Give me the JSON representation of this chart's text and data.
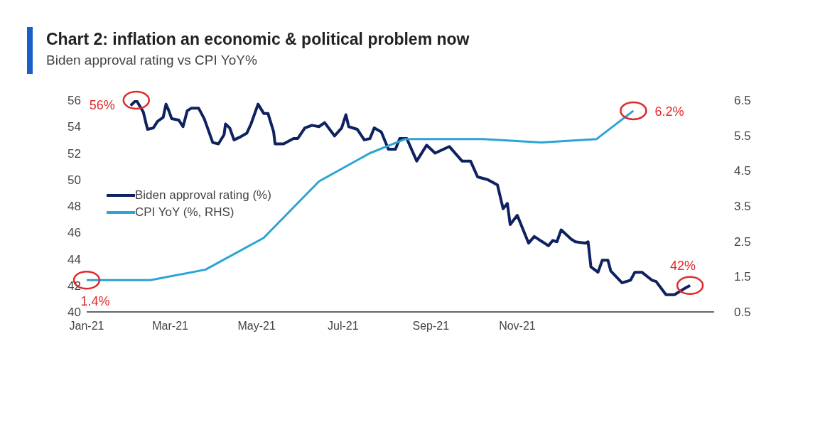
{
  "chart_data": {
    "type": "line",
    "title": "Chart 2: inflation an economic & political problem now",
    "subtitle": "Biden approval rating vs CPI YoY%",
    "xlim": [
      "2021-01-01",
      "2022-03-20"
    ],
    "xticks": [
      {
        "value": "2021-01-01",
        "label": "Jan-21"
      },
      {
        "value": "2021-03-01",
        "label": "Mar-21"
      },
      {
        "value": "2021-05-01",
        "label": "May-21"
      },
      {
        "value": "2021-07-01",
        "label": "Jul-21"
      },
      {
        "value": "2021-09-01",
        "label": "Sep-21"
      },
      {
        "value": "2021-11-01",
        "label": "Nov-21"
      }
    ],
    "ylim": [
      40,
      56
    ],
    "yticks": [
      40,
      42,
      44,
      46,
      48,
      50,
      52,
      54,
      56
    ],
    "y2lim": [
      0.5,
      6.5
    ],
    "y2ticks": [
      0.5,
      1.5,
      2.5,
      3.5,
      4.5,
      5.5,
      6.5
    ],
    "grid": false,
    "legend": "left",
    "marker": "none",
    "line_style": "solid",
    "series": [
      {
        "name": "Biden approval rating (%)",
        "color": "#0f2260",
        "x": [
          "2021-02-01",
          "2021-02-05",
          "2021-02-10",
          "2021-02-12",
          "2021-02-13",
          "2021-02-17",
          "2021-02-20",
          "2021-02-24",
          "2021-02-26",
          "2021-02-28",
          "2021-03-02",
          "2021-03-07",
          "2021-03-10",
          "2021-03-13",
          "2021-03-16",
          "2021-03-21",
          "2021-03-25",
          "2021-03-29",
          "2021-03-31",
          "2021-04-04",
          "2021-04-08",
          "2021-04-09",
          "2021-04-12",
          "2021-04-15",
          "2021-04-19",
          "2021-04-24",
          "2021-04-27",
          "2021-05-02",
          "2021-05-06",
          "2021-05-09",
          "2021-05-13",
          "2021-05-14",
          "2021-05-20",
          "2021-05-27",
          "2021-05-30",
          "2021-06-04",
          "2021-06-09",
          "2021-06-14",
          "2021-06-18",
          "2021-06-25",
          "2021-06-30",
          "2021-07-03",
          "2021-07-05",
          "2021-07-11",
          "2021-07-16",
          "2021-07-20",
          "2021-07-23",
          "2021-07-28",
          "2021-08-02",
          "2021-08-07",
          "2021-08-10",
          "2021-08-15",
          "2021-08-22",
          "2021-08-29",
          "2021-09-04",
          "2021-09-14",
          "2021-09-23",
          "2021-09-29",
          "2021-10-04",
          "2021-10-11",
          "2021-10-18",
          "2021-10-22",
          "2021-10-25",
          "2021-10-27",
          "2021-11-01",
          "2021-11-09",
          "2021-11-13",
          "2021-11-23",
          "2021-11-26",
          "2021-11-29",
          "2021-12-02",
          "2021-12-09",
          "2021-12-12",
          "2021-12-19",
          "2021-12-21",
          "2021-12-23",
          "2021-12-28",
          "2021-12-31",
          "2022-01-04",
          "2022-01-06",
          "2022-01-14",
          "2022-01-20",
          "2022-01-23",
          "2022-01-28",
          "2022-02-04",
          "2022-02-07",
          "2022-02-14",
          "2022-02-20",
          "2022-02-26",
          "2022-03-03"
        ],
        "values": [
          55.6,
          56,
          55.1,
          54.2,
          53.8,
          53.9,
          54.4,
          54.7,
          55.7,
          55.2,
          54.6,
          54.5,
          54.0,
          55.2,
          55.4,
          55.4,
          54.6,
          53.4,
          52.8,
          52.7,
          53.4,
          54.2,
          53.9,
          53.0,
          53.2,
          53.5,
          54.2,
          55.7,
          55.0,
          55.0,
          53.6,
          52.7,
          52.7,
          53.1,
          53.1,
          53.9,
          54.1,
          54.0,
          54.3,
          53.3,
          53.9,
          54.9,
          54.0,
          53.8,
          53.0,
          53.1,
          53.9,
          53.6,
          52.3,
          52.3,
          53.1,
          53.1,
          51.4,
          52.6,
          52.0,
          52.5,
          51.4,
          51.4,
          50.2,
          50.0,
          49.6,
          47.8,
          48.2,
          46.6,
          47.3,
          45.2,
          45.7,
          45.0,
          45.4,
          45.3,
          46.2,
          45.5,
          45.3,
          45.2,
          45.3,
          43.4,
          43.0,
          43.9,
          43.9,
          43.1,
          42.2,
          42.4,
          43.0,
          43.0,
          42.4,
          42.3,
          41.3,
          41.3,
          41.7,
          42
        ]
      },
      {
        "name": "CPI YoY (%, RHS)",
        "color": "#2ba3d6",
        "axis": "y2",
        "x": [
          "2021-01-01",
          "2021-02-15",
          "2021-03-26",
          "2021-05-06",
          "2021-06-14",
          "2021-07-20",
          "2021-08-14",
          "2021-10-08",
          "2021-11-18",
          "2021-12-27",
          "2022-01-22"
        ],
        "values": [
          1.4,
          1.4,
          1.7,
          2.6,
          4.2,
          5.0,
          5.4,
          5.4,
          5.3,
          5.4,
          6.2
        ]
      }
    ],
    "annotations": [
      {
        "text": "56%",
        "x": "2021-02-05",
        "y": 56
      },
      "1.4%",
      "6.2%",
      {
        "text": "42%",
        "x": "2022-03-03",
        "y": 42
      }
    ]
  }
}
